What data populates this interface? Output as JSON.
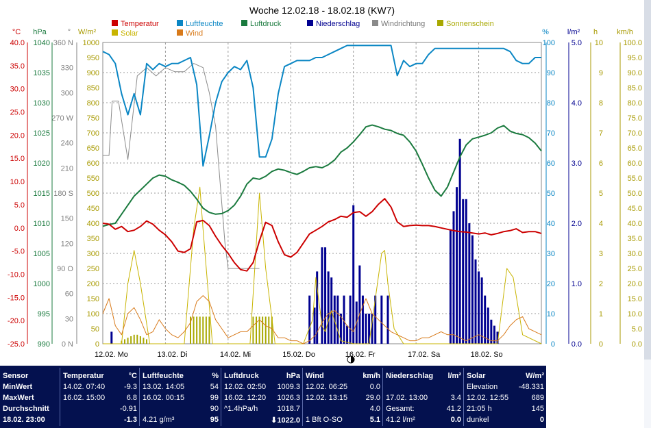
{
  "window": {
    "title": "Woche 12.02.18 - 18.02.18 (KW7)"
  },
  "legend": [
    {
      "label": "Temperatur",
      "color": "#cc0000"
    },
    {
      "label": "Luftfeuchte",
      "color": "#0a86c4"
    },
    {
      "label": "Luftdruck",
      "color": "#1a7a3e"
    },
    {
      "label": "Niederschlag",
      "color": "#000090"
    },
    {
      "label": "Windrichtung",
      "color": "#8a8a8a"
    },
    {
      "label": "Sonnenschein",
      "color": "#a8a800"
    },
    {
      "label": "Solar",
      "color": "#c8b400"
    },
    {
      "label": "Wind",
      "color": "#d87a1a"
    }
  ],
  "axes": {
    "temperature": {
      "unit": "°C",
      "color": "#cc0000",
      "ticks": [
        "40.0",
        "35.0",
        "30.0",
        "25.0",
        "20.0",
        "15.0",
        "10.0",
        "5.0",
        "0.0",
        "-5.0",
        "-10.0",
        "-15.0",
        "-20.0",
        "-25.0"
      ]
    },
    "pressure": {
      "unit": "hPa",
      "color": "#1a7a3e",
      "ticks": [
        "1040",
        "1035",
        "1030",
        "1025",
        "1020",
        "1015",
        "1010",
        "1005",
        "1000",
        "995",
        "990"
      ]
    },
    "direction": {
      "unit": "°",
      "color": "#808080",
      "ticks": [
        "360 N",
        "330",
        "300",
        "270 W",
        "240",
        "210",
        "180 S",
        "150",
        "120",
        "90  O",
        "60",
        "30",
        "0  N"
      ]
    },
    "solar": {
      "unit": "W/m²",
      "color": "#a89a00",
      "ticks": [
        "1000",
        "950",
        "900",
        "850",
        "800",
        "750",
        "700",
        "650",
        "600",
        "550",
        "500",
        "450",
        "400",
        "350",
        "300",
        "250",
        "200",
        "150",
        "100",
        "50",
        "0"
      ]
    },
    "humidity": {
      "unit": "%",
      "color": "#0a86c4",
      "ticks": [
        "100",
        "90",
        "80",
        "70",
        "60",
        "50",
        "40",
        "30",
        "20",
        "10",
        "0"
      ]
    },
    "rain": {
      "unit": "l/m²",
      "color": "#000090",
      "ticks": [
        "5.0",
        "4.0",
        "3.0",
        "2.0",
        "1.0",
        "0.0"
      ]
    },
    "sunshine": {
      "unit": "h",
      "color": "#a89a00",
      "ticks": [
        "10",
        "9",
        "8",
        "7",
        "6",
        "5",
        "4",
        "3",
        "2",
        "1",
        "0"
      ]
    },
    "wind": {
      "unit": "km/h",
      "color": "#a89a00",
      "ticks": [
        "100.0",
        "95.0",
        "90.0",
        "85.0",
        "80.0",
        "75.0",
        "70.0",
        "65.0",
        "60.0",
        "55.0",
        "50.0",
        "45.0",
        "40.0",
        "35.0",
        "30.0",
        "25.0",
        "20.0",
        "15.0",
        "10.0",
        "5.0",
        "0.0"
      ]
    },
    "days": [
      "12.02.  Mo",
      "13.02.  Di",
      "14.02.  Mi",
      "15.02.  Do",
      "16.02.  Fr",
      "17.02.  Sa",
      "18.02.  So"
    ]
  },
  "chart_data": {
    "type": "line",
    "title": "Woche 12.02.18 - 18.02.18 (KW7)",
    "x_unit": "day index from 12.02. 00:00",
    "xlim": [
      0,
      7
    ],
    "series": [
      {
        "name": "Temperatur",
        "unit": "°C",
        "ylim": [
          -25,
          40
        ],
        "x": [
          0,
          0.1,
          0.2,
          0.3,
          0.4,
          0.5,
          0.6,
          0.7,
          0.8,
          0.9,
          1.0,
          1.1,
          1.2,
          1.3,
          1.4,
          1.5,
          1.6,
          1.7,
          1.8,
          1.9,
          2.0,
          2.1,
          2.2,
          2.3,
          2.4,
          2.5,
          2.6,
          2.7,
          2.8,
          2.9,
          3.0,
          3.1,
          3.2,
          3.3,
          3.4,
          3.5,
          3.6,
          3.7,
          3.8,
          3.9,
          4.0,
          4.1,
          4.2,
          4.3,
          4.4,
          4.5,
          4.6,
          4.7,
          4.8,
          4.9,
          5.0,
          5.1,
          5.2,
          5.3,
          5.4,
          5.5,
          5.6,
          5.7,
          5.8,
          5.9,
          6.0,
          6.1,
          6.2,
          6.3,
          6.4,
          6.5,
          6.6,
          6.7,
          6.8,
          6.9,
          7.0
        ],
        "values": [
          1.0,
          0.8,
          -0.3,
          0.3,
          -0.8,
          -0.5,
          0.3,
          1.5,
          0.8,
          -0.5,
          -1.5,
          -3.0,
          -5.0,
          -5.3,
          -4.5,
          1.3,
          1.6,
          0.5,
          -1.8,
          -3.8,
          -5.5,
          -7.5,
          -9.0,
          -9.3,
          -7.5,
          -2.8,
          1.2,
          0.5,
          -3.0,
          -5.8,
          -6.3,
          -5.3,
          -3.3,
          -1.3,
          -0.5,
          0.3,
          1.3,
          1.8,
          2.5,
          2.3,
          3.3,
          3.5,
          2.5,
          3.5,
          5.1,
          6.3,
          4.5,
          1.3,
          0.3,
          0.5,
          0.6,
          0.5,
          0.5,
          0.3,
          0.0,
          -0.3,
          -0.6,
          -0.8,
          -0.9,
          -1.1,
          -1.3,
          -1.1,
          -1.5,
          -1.2,
          -0.8,
          -0.6,
          -0.2,
          -1.0,
          -0.8,
          -0.8,
          -1.2
        ]
      },
      {
        "name": "Luftfeuchte",
        "unit": "%",
        "ylim": [
          0,
          100
        ],
        "x": [
          0,
          0.1,
          0.2,
          0.3,
          0.4,
          0.5,
          0.6,
          0.7,
          0.8,
          0.9,
          1.0,
          1.1,
          1.2,
          1.3,
          1.4,
          1.5,
          1.6,
          1.7,
          1.8,
          1.9,
          2.0,
          2.1,
          2.2,
          2.3,
          2.4,
          2.5,
          2.6,
          2.7,
          2.8,
          2.9,
          3.0,
          3.1,
          3.2,
          3.3,
          3.4,
          3.5,
          3.6,
          3.7,
          3.8,
          3.9,
          4.0,
          4.1,
          4.2,
          4.3,
          4.4,
          4.5,
          4.6,
          4.7,
          4.8,
          4.9,
          5.0,
          5.1,
          5.2,
          5.3,
          5.4,
          5.5,
          5.6,
          5.7,
          5.8,
          5.9,
          6.0,
          6.1,
          6.2,
          6.3,
          6.4,
          6.5,
          6.6,
          6.7,
          6.8,
          6.9,
          7.0
        ],
        "values": [
          97,
          96,
          93,
          83,
          76,
          83,
          76,
          93,
          91,
          93,
          92,
          93,
          93,
          94,
          95,
          86,
          59,
          69,
          80,
          87,
          90,
          92,
          91,
          94,
          85,
          62,
          62,
          68,
          83,
          92,
          93,
          94,
          94,
          94,
          95,
          95,
          96,
          97,
          98,
          99,
          99,
          99,
          99,
          99,
          99,
          99,
          99,
          89,
          94,
          92,
          93,
          93,
          96,
          98,
          98,
          98,
          98,
          98,
          98,
          98,
          98,
          98,
          98,
          98,
          98,
          97,
          94,
          93,
          93,
          95,
          95
        ]
      },
      {
        "name": "Luftdruck",
        "unit": "hPa",
        "ylim": [
          990,
          1040
        ],
        "x": [
          0,
          0.1,
          0.2,
          0.3,
          0.4,
          0.5,
          0.6,
          0.7,
          0.8,
          0.9,
          1.0,
          1.1,
          1.2,
          1.3,
          1.4,
          1.5,
          1.6,
          1.7,
          1.8,
          1.9,
          2.0,
          2.1,
          2.2,
          2.3,
          2.4,
          2.5,
          2.6,
          2.7,
          2.8,
          2.9,
          3.0,
          3.1,
          3.2,
          3.3,
          3.4,
          3.5,
          3.6,
          3.7,
          3.8,
          3.9,
          4.0,
          4.1,
          4.2,
          4.3,
          4.4,
          4.5,
          4.6,
          4.7,
          4.8,
          4.9,
          5.0,
          5.1,
          5.2,
          5.3,
          5.4,
          5.5,
          5.6,
          5.7,
          5.8,
          5.9,
          6.0,
          6.1,
          6.2,
          6.3,
          6.4,
          6.5,
          6.6,
          6.7,
          6.8,
          6.9,
          7.0
        ],
        "values": [
          1009.5,
          1009.8,
          1010.0,
          1011.5,
          1013.0,
          1014.5,
          1015.5,
          1016.5,
          1017.5,
          1018.0,
          1017.8,
          1017.2,
          1016.8,
          1016.3,
          1015.3,
          1014.0,
          1012.5,
          1011.8,
          1011.5,
          1011.6,
          1012.1,
          1013.0,
          1014.5,
          1016.5,
          1017.5,
          1017.3,
          1017.8,
          1018.6,
          1019.0,
          1018.8,
          1018.4,
          1018.1,
          1018.6,
          1019.2,
          1019.4,
          1019.2,
          1019.7,
          1020.5,
          1021.8,
          1022.5,
          1023.5,
          1024.7,
          1026.0,
          1026.3,
          1026.0,
          1025.6,
          1025.4,
          1024.9,
          1024.6,
          1023.5,
          1022.0,
          1019.8,
          1017.5,
          1015.5,
          1014.5,
          1016.0,
          1018.5,
          1021.0,
          1023.0,
          1024.0,
          1024.3,
          1024.6,
          1025.0,
          1025.8,
          1026.2,
          1025.3,
          1024.9,
          1024.7,
          1024.2,
          1023.3,
          1022.0
        ]
      },
      {
        "name": "Windrichtung",
        "unit": "°",
        "ylim": [
          0,
          360
        ],
        "x": [
          0.0,
          0.1,
          0.15,
          0.25,
          0.4,
          0.55,
          0.7,
          0.85,
          1.0,
          1.15,
          1.3,
          1.45,
          1.6,
          1.7,
          1.8,
          1.95,
          2.0,
          2.15,
          2.3,
          2.45,
          2.5
        ],
        "values": [
          225,
          225,
          290,
          290,
          220,
          320,
          330,
          320,
          330,
          325,
          325,
          335,
          330,
          300,
          260,
          120,
          90,
          90,
          90,
          90,
          90
        ]
      },
      {
        "name": "Sonnenschein",
        "unit": "h",
        "x": [
          0.3,
          0.35,
          0.4,
          0.45,
          0.5,
          0.55,
          0.6,
          0.65,
          0.7,
          1.4,
          1.45,
          1.5,
          1.55,
          1.6,
          1.65,
          1.7,
          2.4,
          2.45,
          2.5,
          2.55,
          2.6,
          2.65,
          2.7
        ],
        "values": [
          0.1,
          0.15,
          0.2,
          0.25,
          0.3,
          0.3,
          0.25,
          0.2,
          0.15,
          0.9,
          0.9,
          0.9,
          0.9,
          0.9,
          0.9,
          0.9,
          0.9,
          0.9,
          0.9,
          0.9,
          0.9,
          0.9,
          0.9
        ]
      },
      {
        "name": "Solar",
        "unit": "W/m²",
        "ylim": [
          0,
          1000
        ],
        "x": [
          0,
          0.3,
          0.4,
          0.5,
          0.6,
          0.75,
          1.0,
          1.3,
          1.45,
          1.55,
          1.6,
          1.75,
          2.0,
          2.35,
          2.5,
          2.6,
          2.75,
          3.0,
          3.2,
          3.35,
          3.4,
          3.5,
          3.55,
          3.65,
          3.8,
          4.0,
          4.25,
          4.45,
          4.5,
          4.55,
          4.65,
          4.8,
          5.0,
          5.1,
          5.2,
          6.3,
          6.45,
          6.55,
          6.7,
          7.0
        ],
        "values": [
          0,
          0,
          200,
          310,
          200,
          0,
          0,
          0,
          380,
          520,
          380,
          0,
          0,
          0,
          500,
          250,
          0,
          0,
          0,
          80,
          220,
          60,
          40,
          110,
          10,
          0,
          0,
          300,
          310,
          200,
          50,
          0,
          0,
          0,
          0,
          0,
          250,
          220,
          30,
          0
        ]
      },
      {
        "name": "Wind",
        "unit": "km/h",
        "ylim": [
          0,
          100
        ],
        "x": [
          0,
          0.1,
          0.2,
          0.3,
          0.4,
          0.5,
          0.6,
          0.7,
          0.8,
          0.9,
          1.0,
          1.1,
          1.2,
          1.3,
          1.4,
          1.5,
          1.6,
          1.7,
          1.8,
          1.9,
          2.0,
          2.1,
          2.2,
          2.3,
          2.4,
          2.5,
          2.6,
          2.7,
          2.8,
          2.9,
          3.0,
          3.1,
          3.2,
          3.3,
          3.4,
          3.5,
          3.6,
          3.7,
          3.8,
          3.9,
          4.0,
          4.1,
          4.2,
          4.3,
          4.4,
          4.5,
          4.6,
          4.7,
          4.8,
          4.9,
          5.0,
          5.1,
          5.2,
          5.3,
          5.4,
          5.5,
          5.6,
          5.7,
          5.8,
          5.9,
          6.0,
          6.1,
          6.2,
          6.3,
          6.4,
          6.5,
          6.6,
          6.7,
          6.8,
          6.9,
          7.0
        ],
        "values": [
          10,
          15,
          6,
          3,
          10,
          12,
          8,
          3,
          4,
          8,
          5,
          3,
          2,
          4,
          7,
          14,
          16,
          14,
          8,
          5,
          2,
          3,
          4,
          4,
          6,
          8,
          6,
          5,
          2,
          2,
          1,
          1,
          0,
          1,
          3,
          7,
          10,
          11,
          9,
          6,
          4,
          10,
          15,
          10,
          8,
          6,
          4,
          3,
          2,
          1,
          1,
          2,
          2,
          3,
          4,
          3,
          3,
          2,
          1,
          2,
          3,
          2,
          1,
          1,
          3,
          6,
          8,
          9,
          5,
          4,
          3
        ]
      },
      {
        "name": "Niederschlag",
        "unit": "l/m²",
        "ylim": [
          0,
          5
        ],
        "type": "bar",
        "x": [
          0.14,
          3.3,
          3.38,
          3.42,
          3.5,
          3.55,
          3.6,
          3.65,
          3.7,
          3.75,
          3.8,
          3.85,
          3.9,
          3.95,
          4.0,
          4.05,
          4.1,
          4.15,
          4.2,
          4.25,
          4.3,
          4.35,
          4.45,
          4.55,
          5.55,
          5.6,
          5.65,
          5.7,
          5.75,
          5.8,
          5.85,
          5.9,
          5.95,
          6.0,
          6.05,
          6.1,
          6.15,
          6.2,
          6.25,
          6.3
        ],
        "values": [
          0.2,
          0.8,
          0.6,
          1.2,
          1.6,
          1.6,
          1.2,
          1.1,
          0.8,
          0.8,
          0.5,
          0.8,
          0.3,
          0.8,
          2.3,
          0.7,
          1.3,
          0.8,
          0.5,
          0.5,
          0.5,
          0.8,
          0.8,
          0.8,
          1.9,
          2.2,
          2.6,
          3.4,
          2.4,
          2.4,
          2.0,
          1.8,
          1.4,
          1.2,
          1.1,
          0.8,
          0.6,
          0.4,
          0.3,
          0.2
        ]
      }
    ]
  },
  "stats": {
    "sensor": {
      "header": "Sensor",
      "rows": [
        "MinWert",
        "MaxWert",
        "Durchschnitt",
        "18.02. 23:00"
      ]
    },
    "temperatur": {
      "header": "Temperatur",
      "unit": "°C",
      "rows": [
        [
          "14.02.  07:40",
          "-9.3"
        ],
        [
          "16.02.  15:00",
          "6.8"
        ],
        [
          "",
          "-0.91"
        ],
        [
          "",
          "-1.3"
        ]
      ]
    },
    "luftfeuchte": {
      "header": "Luftfeuchte",
      "unit": "%",
      "rows": [
        [
          "13.02.  14:05",
          "54"
        ],
        [
          "16.02.  00:15",
          "99"
        ],
        [
          "",
          "90"
        ],
        [
          "4.21 g/m³",
          "95"
        ]
      ]
    },
    "luftdruck": {
      "header": "Luftdruck",
      "unit": "hPa",
      "rows": [
        [
          "12.02.  02:50",
          "1009.3"
        ],
        [
          "16.02.  12:20",
          "1026.3"
        ],
        [
          "^1.4hPa/h",
          "1018.7"
        ],
        [
          "",
          "⬇1022.0"
        ]
      ]
    },
    "wind": {
      "header": "Wind",
      "unit": "km/h",
      "rows": [
        [
          "12.02.  06:25",
          "0.0"
        ],
        [
          "12.02.  13:15",
          "29.0"
        ],
        [
          "",
          "4.0"
        ],
        [
          "1 Bft O-SO",
          "5.1"
        ]
      ]
    },
    "niederschlag": {
      "header": "Niederschlag",
      "unit": "l/m²",
      "rows": [
        [
          "",
          ""
        ],
        [
          "17.02.  13:00",
          "3.4"
        ],
        [
          "Gesamt:",
          "41.2"
        ],
        [
          "41.2 l/m²",
          "0.0"
        ]
      ]
    },
    "solar": {
      "header": "Solar",
      "unit": "W/m²",
      "rows": [
        [
          "Elevation",
          "-48.331"
        ],
        [
          "12.02.  12:55",
          "689"
        ],
        [
          "21:05 h",
          "145"
        ],
        [
          "dunkel",
          "0"
        ]
      ]
    }
  }
}
